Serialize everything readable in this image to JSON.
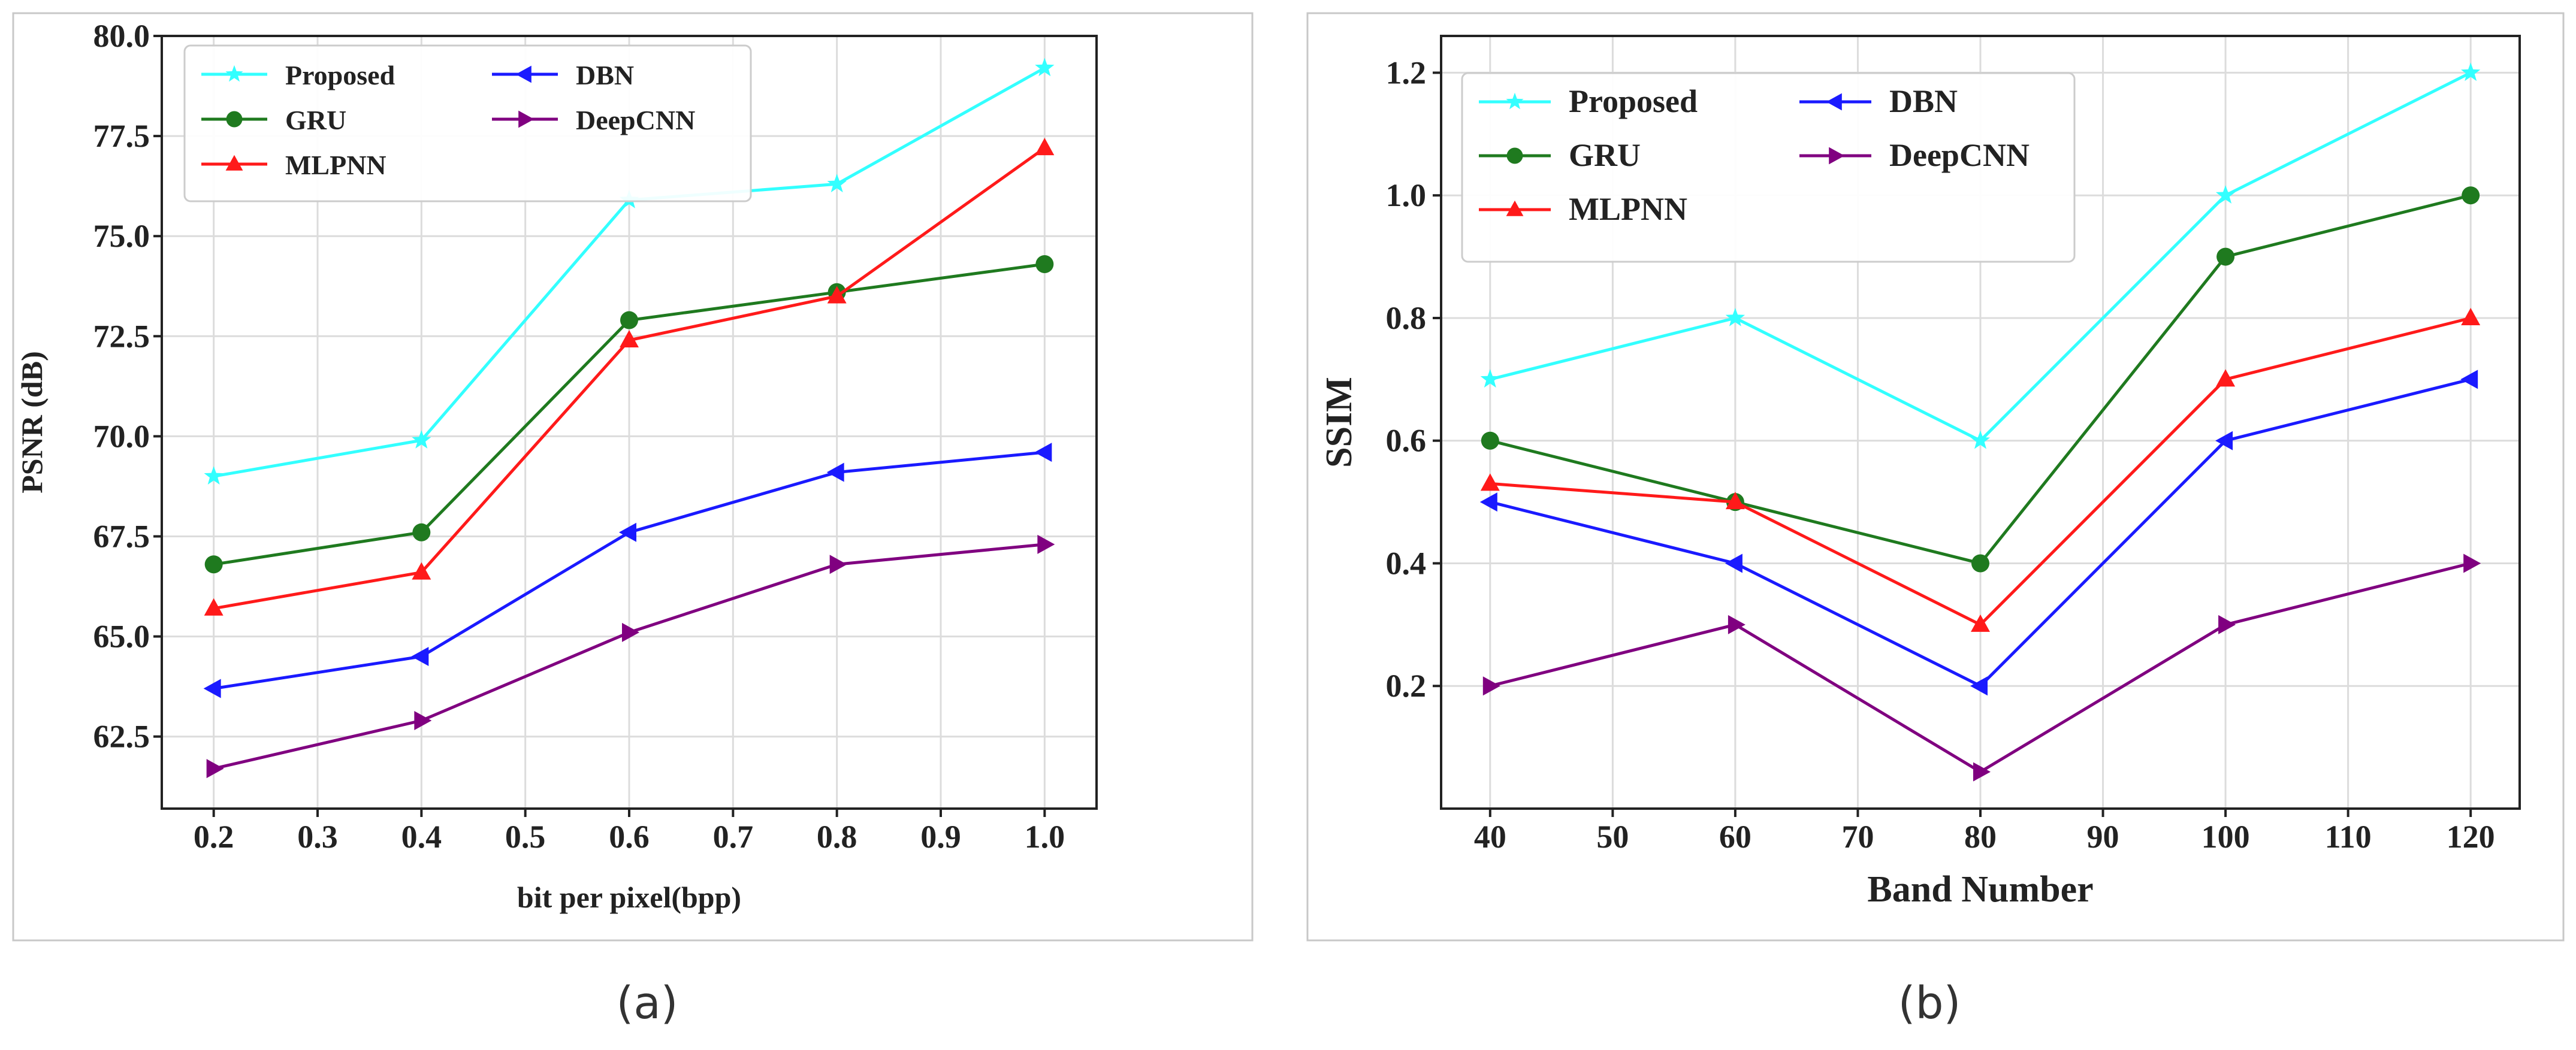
{
  "chart_data": [
    {
      "type": "line",
      "panel_label": "(a)",
      "title": "",
      "xlabel": "bit per pixel(bpp)",
      "ylabel": "PSNR (dB)",
      "xlim": [
        0.15,
        1.05
      ],
      "ylim": [
        60.7,
        80.0
      ],
      "xticks": [
        0.2,
        0.3,
        0.4,
        0.5,
        0.6,
        0.7,
        0.8,
        0.9,
        1.0
      ],
      "xtick_labels": [
        "0.2",
        "0.3",
        "0.4",
        "0.5",
        "0.6",
        "0.7",
        "0.8",
        "0.9",
        "1.0"
      ],
      "yticks": [
        62.5,
        65.0,
        67.5,
        70.0,
        72.5,
        75.0,
        77.5,
        80.0
      ],
      "ytick_labels": [
        "62.5",
        "65.0",
        "67.5",
        "70.0",
        "72.5",
        "75.0",
        "77.5",
        "80.0"
      ],
      "grid": true,
      "legend_position": "top-left",
      "x": [
        0.2,
        0.4,
        0.6,
        0.8,
        1.0
      ],
      "series": [
        {
          "name": "Proposed",
          "color": "#33ffff",
          "marker": "star",
          "values": [
            69.0,
            69.9,
            75.9,
            76.3,
            79.2
          ]
        },
        {
          "name": "GRU",
          "color": "#1f7a1f",
          "marker": "circle",
          "values": [
            66.8,
            67.6,
            72.9,
            73.6,
            74.3
          ]
        },
        {
          "name": "MLPNN",
          "color": "#ff1a1a",
          "marker": "triangle-up",
          "values": [
            65.7,
            66.6,
            72.4,
            73.5,
            77.2
          ]
        },
        {
          "name": "DBN",
          "color": "#1a1aff",
          "marker": "triangle-left",
          "values": [
            63.7,
            64.5,
            67.6,
            69.1,
            69.6
          ]
        },
        {
          "name": "DeepCNN",
          "color": "#800080",
          "marker": "triangle-right",
          "values": [
            61.7,
            62.9,
            65.1,
            66.8,
            67.3
          ]
        }
      ]
    },
    {
      "type": "line",
      "panel_label": "(b)",
      "title": "",
      "xlabel": "Band Number",
      "ylabel": "SSIM",
      "xlim": [
        36,
        124
      ],
      "ylim": [
        0.0,
        1.26
      ],
      "xticks": [
        40,
        50,
        60,
        70,
        80,
        90,
        100,
        110,
        120
      ],
      "xtick_labels": [
        "40",
        "50",
        "60",
        "70",
        "80",
        "90",
        "100",
        "110",
        "120"
      ],
      "yticks": [
        0.2,
        0.4,
        0.6,
        0.8,
        1.0,
        1.2
      ],
      "ytick_labels": [
        "0.2",
        "0.4",
        "0.6",
        "0.8",
        "1.0",
        "1.2"
      ],
      "grid": true,
      "legend_position": "top-left",
      "x": [
        40,
        60,
        80,
        100,
        120
      ],
      "series": [
        {
          "name": "Proposed",
          "color": "#33ffff",
          "marker": "star",
          "values": [
            0.7,
            0.8,
            0.6,
            1.0,
            1.2
          ]
        },
        {
          "name": "GRU",
          "color": "#1f7a1f",
          "marker": "circle",
          "values": [
            0.6,
            0.5,
            0.4,
            0.9,
            1.0
          ]
        },
        {
          "name": "MLPNN",
          "color": "#ff1a1a",
          "marker": "triangle-up",
          "values": [
            0.53,
            0.5,
            0.3,
            0.7,
            0.8
          ]
        },
        {
          "name": "DBN",
          "color": "#1a1aff",
          "marker": "triangle-left",
          "values": [
            0.5,
            0.4,
            0.2,
            0.6,
            0.7
          ]
        },
        {
          "name": "DeepCNN",
          "color": "#800080",
          "marker": "triangle-right",
          "values": [
            0.2,
            0.3,
            0.06,
            0.3,
            0.4
          ]
        }
      ]
    }
  ]
}
